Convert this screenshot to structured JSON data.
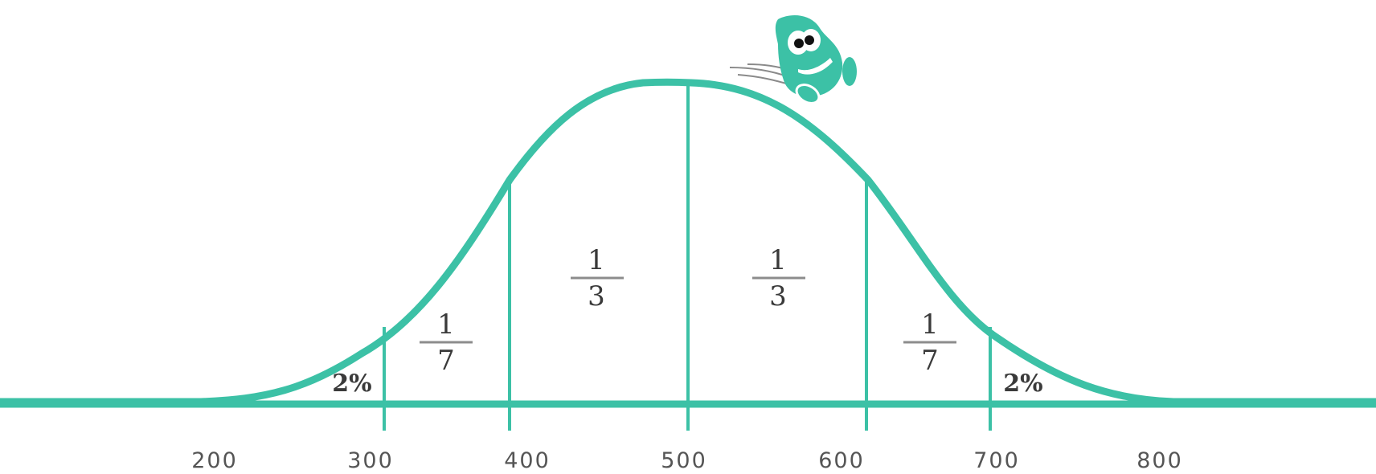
{
  "diagram": {
    "colors": {
      "curve": "#3cc1a6",
      "text": "#3a3a3a",
      "fraction_bar": "#8c8c8c",
      "tick_label": "#555555"
    },
    "x_axis": {
      "ticks": [
        "200",
        "300",
        "400",
        "500",
        "600",
        "700",
        "800"
      ]
    },
    "regions": {
      "left_tail": "2%",
      "left_band": {
        "numerator": "1",
        "denominator": "7"
      },
      "left_center": {
        "numerator": "1",
        "denominator": "3"
      },
      "right_center": {
        "numerator": "1",
        "denominator": "3"
      },
      "right_band": {
        "numerator": "1",
        "denominator": "7"
      },
      "right_tail": "2%"
    },
    "mascot": {
      "icon": "green-blob-mascot-icon"
    }
  }
}
